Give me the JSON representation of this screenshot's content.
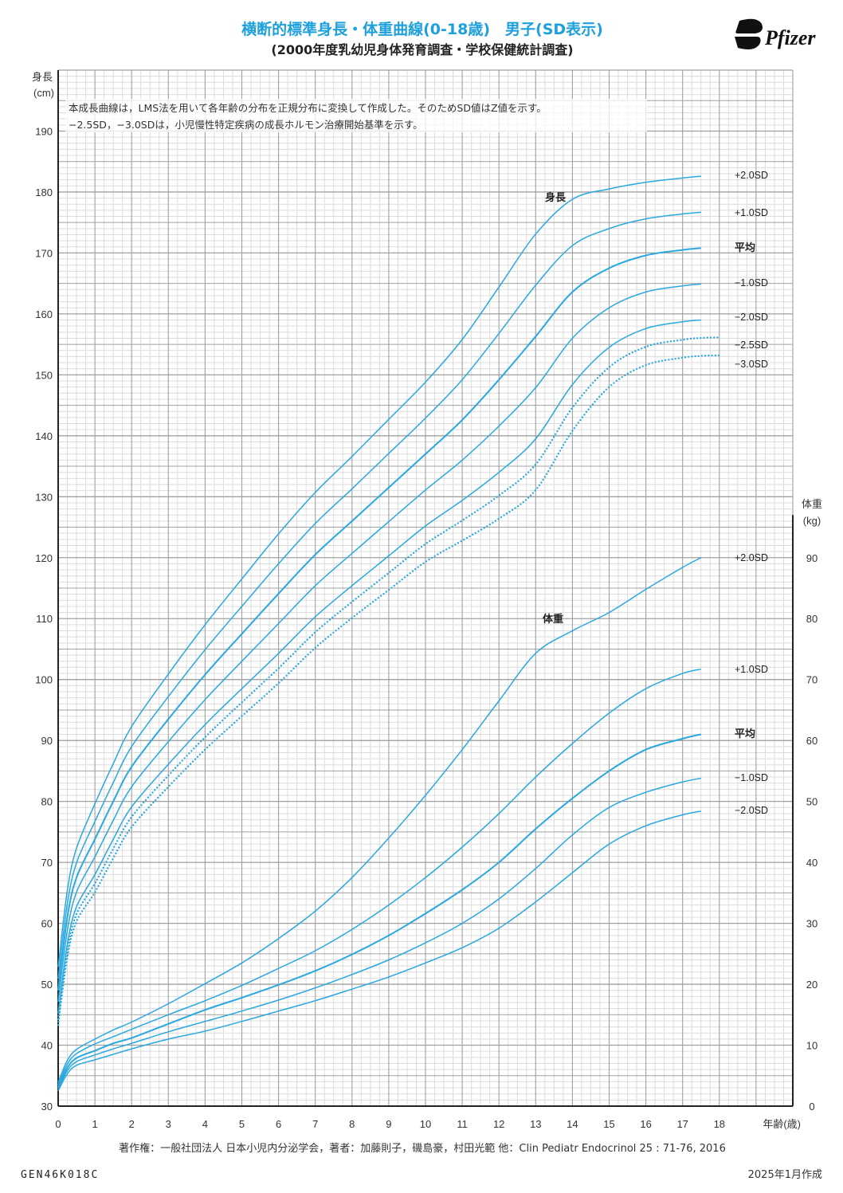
{
  "header": {
    "title": "横断的標準身長・体重曲線(0-18歳)　男子(SD表示)",
    "subtitle": "(2000年度乳幼児身体発育調査・学校保健統計調査)",
    "logo_text": "Pfizer"
  },
  "notes": [
    "本成長曲線は，LMS法を用いて各年齢の分布を正規分布に変換して作成した。そのためSD値はZ値を示す。",
    "−2.5SD，−3.0SDは，小児慢性特定疾病の成長ホルモン治療開始基準を示す。"
  ],
  "footer": {
    "copyright": "著作権：一般社団法人 日本小児内分泌学会，著者：加藤則子，磯島豪，村田光範 他：Clin Pediatr Endocrinol 25 : 71-76, 2016",
    "code": "GEN46K018C",
    "date": "2025年1月作成"
  },
  "colors": {
    "curve": "#29a8e0",
    "title": "#1ea0dc",
    "grid_major": "#a0a0a0",
    "grid_minor": "#dcdcdc",
    "axis": "#222222"
  },
  "chart_data": {
    "type": "line",
    "title": "横断的標準身長・体重曲線(0-18歳) 男子(SD表示)",
    "xlabel": "年齢(歳)",
    "xlim": [
      0,
      20
    ],
    "xticks": [
      "0",
      "1",
      "2",
      "3",
      "4",
      "5",
      "6",
      "7",
      "8",
      "9",
      "10",
      "11",
      "12",
      "13",
      "14",
      "15",
      "16",
      "17",
      "18"
    ],
    "grid": true,
    "height": {
      "ylabel_1": "身長",
      "ylabel_2": "(cm)",
      "section_label": "身長",
      "ylim": [
        30,
        200
      ],
      "yticks": [
        "190",
        "180",
        "170",
        "160",
        "150",
        "140",
        "130",
        "120",
        "110",
        "100",
        "90",
        "80",
        "70",
        "60",
        "50",
        "40",
        "30"
      ],
      "ages": [
        0,
        0.25,
        0.5,
        1,
        1.5,
        2,
        3,
        4,
        5,
        6,
        7,
        8,
        9,
        10,
        11,
        12,
        13,
        14,
        15,
        16,
        17,
        17.5,
        18
      ],
      "mean": [
        49,
        61,
        67.5,
        73.8,
        80,
        85.7,
        93.5,
        100.8,
        107.5,
        114.1,
        120.5,
        126,
        131.5,
        137,
        142.6,
        149.2,
        156.3,
        163.6,
        167.5,
        169.6,
        170.5,
        170.8,
        170.9
      ],
      "sd": [
        1.9,
        2.2,
        2.4,
        2.9,
        3.1,
        3.3,
        3.7,
        4.1,
        4.5,
        4.9,
        5.1,
        5.3,
        5.6,
        5.9,
        6.6,
        7.6,
        8.4,
        7.6,
        6.5,
        6.0,
        5.9,
        5.9,
        5.9
      ],
      "series": [
        {
          "name": "+2.0SD",
          "z": 2,
          "dotted": false
        },
        {
          "name": "+1.0SD",
          "z": 1,
          "dotted": false
        },
        {
          "name": "平均",
          "z": 0,
          "dotted": false
        },
        {
          "name": "−1.0SD",
          "z": -1,
          "dotted": false
        },
        {
          "name": "−2.0SD",
          "z": -2,
          "dotted": false
        },
        {
          "name": "−2.5SD",
          "z": -2.5,
          "dotted": true
        },
        {
          "name": "−3.0SD",
          "z": -3,
          "dotted": true
        }
      ]
    },
    "weight": {
      "ylabel_1": "体重",
      "ylabel_2": "(kg)",
      "section_label": "体重",
      "ylim": [
        0,
        90
      ],
      "yticks": [
        "90",
        "80",
        "70",
        "60",
        "50",
        "40",
        "30",
        "20",
        "10",
        "0"
      ],
      "ages": [
        0,
        0.25,
        0.5,
        1,
        1.5,
        2,
        3,
        4,
        5,
        6,
        7,
        8,
        9,
        10,
        11,
        12,
        13,
        14,
        15,
        16,
        17,
        17.5
      ],
      "series": [
        {
          "name": "+2.0SD",
          "values": [
            3.9,
            7.5,
            9.3,
            11.0,
            12.5,
            13.8,
            16.8,
            20.1,
            23.5,
            27.5,
            32,
            37.5,
            44,
            51,
            58.5,
            66.5,
            74.3,
            78,
            81,
            84.8,
            88.4,
            90
          ]
        },
        {
          "name": "+1.0SD",
          "values": [
            3.5,
            6.9,
            8.6,
            10.2,
            11.4,
            12.6,
            15.0,
            17.3,
            19.8,
            22.6,
            25.5,
            29,
            33,
            37.5,
            42.5,
            48,
            54,
            59.5,
            64.5,
            68.5,
            71,
            71.7
          ]
        },
        {
          "name": "平均",
          "values": [
            3.1,
            6.3,
            7.9,
            9.1,
            10.3,
            11.2,
            13.5,
            15.8,
            17.8,
            19.9,
            22.2,
            24.9,
            28,
            31.6,
            35.5,
            40,
            45.5,
            50.5,
            55,
            58.5,
            60.3,
            61
          ]
        },
        {
          "name": "−1.0SD",
          "values": [
            2.8,
            5.8,
            7.3,
            8.4,
            9.4,
            10.3,
            12.2,
            13.9,
            15.6,
            17.4,
            19.4,
            21.6,
            24,
            26.8,
            30,
            34,
            39,
            44.5,
            49,
            51.5,
            53.2,
            53.8
          ]
        },
        {
          "name": "−2.0SD",
          "values": [
            2.5,
            5.3,
            6.7,
            7.6,
            8.5,
            9.4,
            11.0,
            12.3,
            13.9,
            15.6,
            17.3,
            19.2,
            21.2,
            23.5,
            26,
            29.2,
            33.5,
            38.3,
            43,
            46,
            47.8,
            48.4
          ]
        }
      ]
    }
  }
}
